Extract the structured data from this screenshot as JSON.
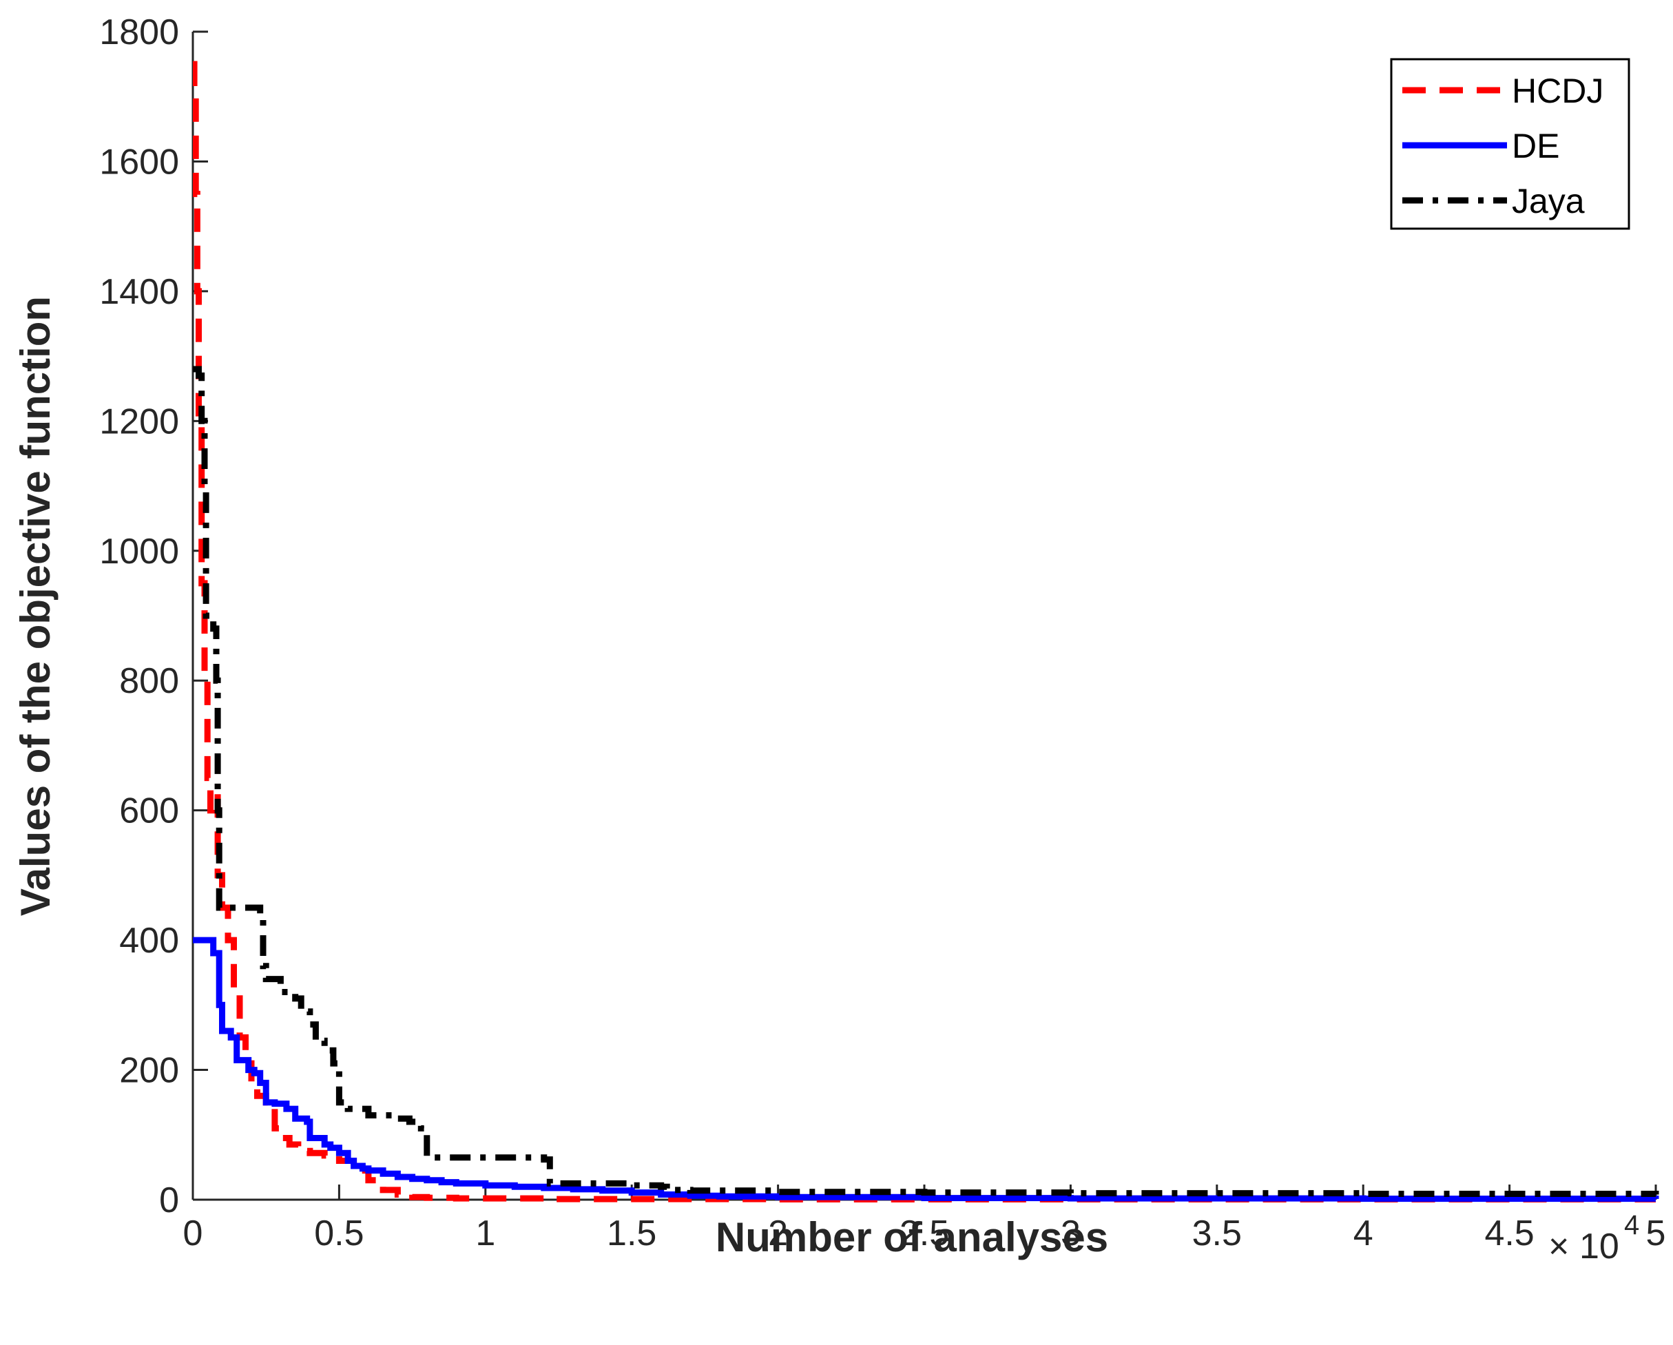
{
  "chart_data": {
    "type": "line",
    "title": "",
    "xlabel": "Number of analyses",
    "ylabel": "Values of the objective function",
    "x_multiplier": {
      "times": "×",
      "base": "10",
      "exponent": "4"
    },
    "xlim": [
      0,
      50000
    ],
    "ylim": [
      0,
      1800
    ],
    "x_scale": 10000,
    "xticks": [
      0,
      0.5,
      1,
      1.5,
      2,
      2.5,
      3,
      3.5,
      4,
      4.5,
      5
    ],
    "xtick_labels": [
      "0",
      "0.5",
      "1",
      "1.5",
      "2",
      "2.5",
      "3",
      "3.5",
      "4",
      "4.5",
      "5"
    ],
    "yticks": [
      0,
      200,
      400,
      600,
      800,
      1000,
      1200,
      1400,
      1600,
      1800
    ],
    "ytick_labels": [
      "0",
      "200",
      "400",
      "600",
      "800",
      "1000",
      "1200",
      "1400",
      "1600",
      "1800"
    ],
    "grid": false,
    "legend_position": "top-right",
    "series": [
      {
        "name": "HCDJ",
        "color": "#ff0000",
        "style": "dashed",
        "x": [
          0,
          50,
          100,
          150,
          200,
          300,
          400,
          500,
          600,
          700,
          850,
          1000,
          1200,
          1400,
          1600,
          1800,
          2000,
          2200,
          2500,
          2800,
          3000,
          3300,
          3600,
          4000,
          4500,
          5000,
          5500,
          6000,
          6500,
          7000,
          7500,
          8000,
          9000,
          10000,
          12000,
          15000,
          20000,
          30000,
          40000,
          50000
        ],
        "y": [
          1750,
          1700,
          1550,
          1400,
          1200,
          950,
          800,
          650,
          600,
          620,
          500,
          450,
          400,
          320,
          250,
          210,
          180,
          160,
          150,
          110,
          95,
          85,
          75,
          72,
          68,
          60,
          45,
          30,
          15,
          8,
          4,
          3,
          2,
          2,
          1,
          1,
          0.5,
          0.3,
          0.2,
          0.2
        ]
      },
      {
        "name": "DE",
        "color": "#0000ff",
        "style": "solid",
        "x": [
          0,
          200,
          500,
          700,
          850,
          900,
          1000,
          1100,
          1300,
          1500,
          1700,
          1900,
          2100,
          2300,
          2500,
          2800,
          3000,
          3200,
          3500,
          3900,
          4000,
          4300,
          4500,
          4700,
          5000,
          5300,
          5500,
          5800,
          6000,
          6500,
          7000,
          7500,
          8000,
          8500,
          9000,
          10000,
          11000,
          12000,
          13000,
          14000,
          15000,
          16000,
          17000,
          18000,
          20000,
          25000,
          30000,
          40000,
          50000
        ],
        "y": [
          400,
          400,
          400,
          380,
          380,
          300,
          260,
          260,
          250,
          215,
          215,
          200,
          195,
          180,
          150,
          148,
          148,
          140,
          125,
          120,
          95,
          95,
          85,
          80,
          72,
          60,
          52,
          48,
          45,
          40,
          35,
          32,
          30,
          27,
          25,
          22,
          20,
          18,
          16,
          14,
          11,
          8,
          6,
          5,
          4,
          2.5,
          2,
          1.5,
          1.2
        ]
      },
      {
        "name": "Jaya",
        "color": "#000000",
        "style": "dashdot",
        "x": [
          0,
          100,
          200,
          300,
          400,
          450,
          600,
          700,
          800,
          850,
          900,
          1000,
          1500,
          2300,
          2400,
          2500,
          3000,
          3500,
          3700,
          4000,
          4200,
          4500,
          4800,
          5000,
          5300,
          6000,
          7000,
          7400,
          7800,
          8000,
          9000,
          10000,
          11000,
          12000,
          12200,
          13000,
          14000,
          15000,
          16000,
          16200,
          17000,
          20000,
          25000,
          30000,
          40000,
          50000
        ],
        "y": [
          1280,
          1280,
          1270,
          1200,
          1100,
          900,
          900,
          880,
          800,
          600,
          450,
          450,
          450,
          440,
          360,
          340,
          320,
          310,
          290,
          270,
          245,
          230,
          210,
          150,
          140,
          130,
          125,
          120,
          110,
          65,
          65,
          65,
          65,
          62,
          25,
          25,
          25,
          22,
          20,
          15,
          14,
          12,
          11,
          10,
          9,
          8
        ]
      }
    ]
  }
}
